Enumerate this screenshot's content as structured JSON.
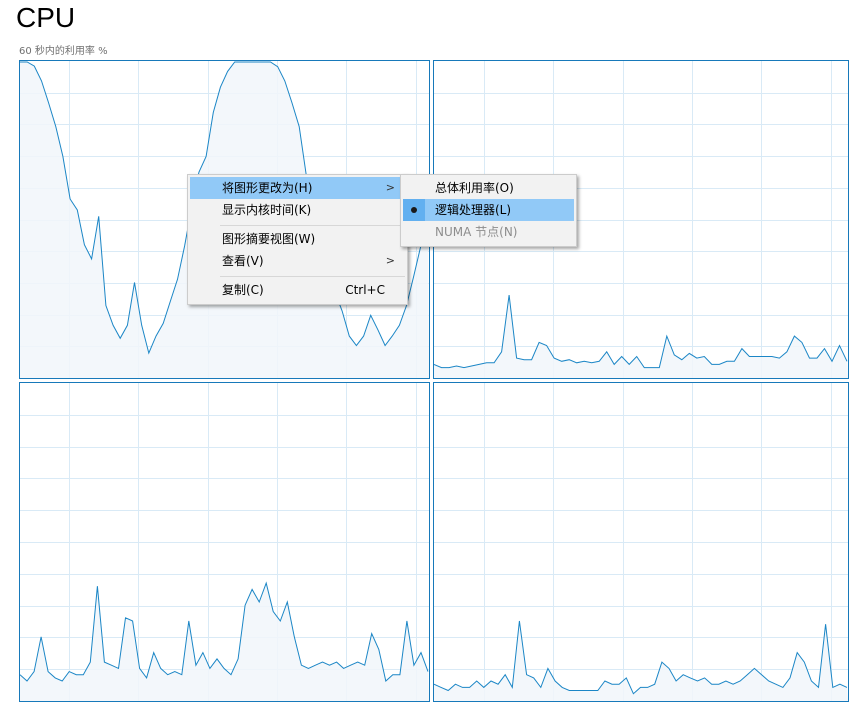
{
  "header": {
    "title": "CPU",
    "subtitle": "60 秒内的利用率 %"
  },
  "colors": {
    "border": "#1779ba",
    "grid": "#d9eaf6",
    "fill": "#f1f6fa",
    "line": "#1b86c6",
    "highlight": "#91c9f7"
  },
  "chart_data": [
    {
      "type": "area",
      "ylim": [
        0,
        100
      ],
      "grid": true,
      "values": [
        100,
        100,
        98.7,
        94,
        87,
        79.5,
        70,
        56.5,
        53,
        42,
        37.5,
        51,
        22.7,
        16.4,
        12.3,
        16.4,
        30,
        16.4,
        7.6,
        13,
        17,
        24,
        31,
        41.6,
        54,
        65,
        70,
        84,
        92,
        97,
        100,
        100,
        100,
        100,
        100,
        100,
        98.5,
        94,
        87,
        79.5,
        64,
        53,
        43,
        35,
        27,
        21,
        13,
        10,
        13,
        19.6,
        15,
        10,
        13,
        16.4,
        22.7,
        32,
        41.6,
        51
      ]
    },
    {
      "type": "area",
      "ylim": [
        0,
        100
      ],
      "grid": true,
      "values": [
        4,
        3,
        3,
        3.5,
        3,
        3.5,
        4,
        4.5,
        4.5,
        8,
        26,
        6,
        5.5,
        5.5,
        11,
        10,
        6,
        5,
        5.5,
        4.5,
        5,
        4.5,
        5,
        8,
        4,
        6.5,
        4,
        6.5,
        3,
        3,
        3,
        13,
        7,
        5.5,
        7.5,
        6,
        6.5,
        4,
        4,
        5,
        5,
        9,
        6.5,
        6.5,
        6.5,
        6.5,
        6,
        8,
        13,
        11,
        6,
        6,
        9,
        5,
        10,
        5
      ]
    },
    {
      "type": "area",
      "ylim": [
        0,
        100
      ],
      "grid": true,
      "values": [
        8,
        6,
        9,
        20,
        9,
        7,
        6,
        9,
        8,
        8,
        12,
        36,
        12,
        11,
        10,
        26,
        25,
        10,
        7,
        15,
        10,
        8,
        9,
        8,
        25,
        11,
        15,
        10,
        13,
        10,
        8,
        13,
        30,
        35,
        31,
        37,
        28,
        25,
        31,
        20,
        11,
        10,
        11,
        12,
        11,
        12,
        10,
        11,
        12,
        11,
        21,
        16,
        6,
        8,
        8,
        25,
        11,
        15,
        9
      ]
    },
    {
      "type": "area",
      "ylim": [
        0,
        100
      ],
      "grid": true,
      "values": [
        5,
        4,
        3,
        5,
        4,
        4,
        6,
        4,
        6,
        5,
        8,
        4,
        25,
        8,
        7,
        4,
        10,
        6,
        4,
        3,
        3,
        3,
        3,
        3,
        6,
        5,
        5,
        7,
        2,
        4,
        4,
        5,
        12,
        10,
        6,
        8,
        7,
        6,
        7,
        5,
        5,
        6,
        5,
        6,
        8,
        10,
        8,
        6,
        5,
        4,
        7,
        15,
        12,
        6,
        4,
        24,
        4,
        5,
        4
      ]
    }
  ],
  "context_menu": {
    "items": [
      {
        "label": "将图形更改为(H)",
        "submenu": true,
        "highlighted": true
      },
      {
        "label": "显示内核时间(K)"
      },
      {
        "label": "图形摘要视图(W)"
      },
      {
        "label": "查看(V)",
        "submenu": true
      },
      {
        "label": "复制(C)",
        "shortcut": "Ctrl+C"
      }
    ],
    "arrow": ">"
  },
  "submenu": {
    "items": [
      {
        "label": "总体利用率(O)"
      },
      {
        "label": "逻辑处理器(L)",
        "selected": true
      },
      {
        "label": "NUMA 节点(N)",
        "disabled": true
      }
    ]
  }
}
